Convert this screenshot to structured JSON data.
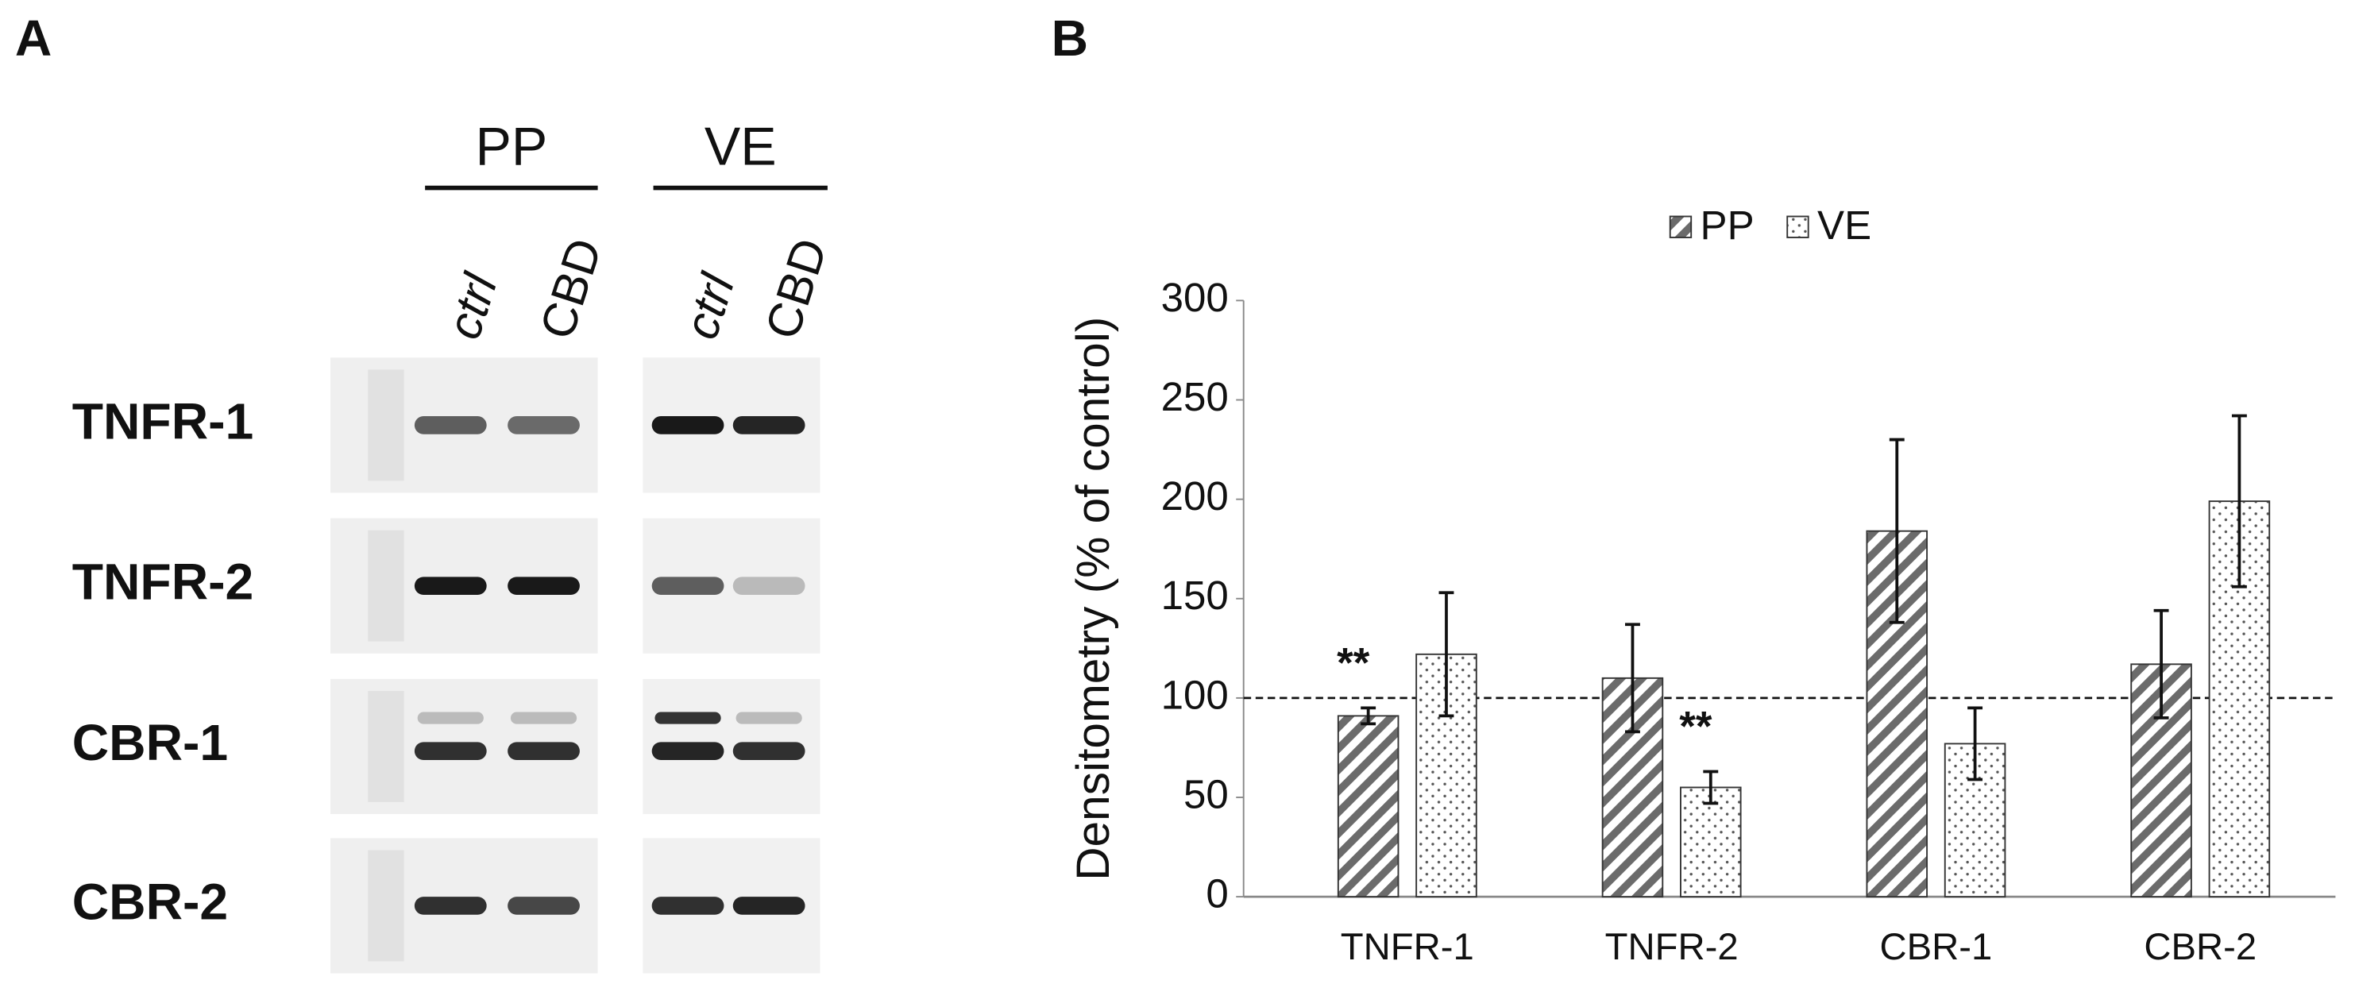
{
  "panel_a": {
    "label": "A",
    "groups": [
      "PP",
      "VE"
    ],
    "lanes": [
      "ctrl",
      "CBD",
      "ctrl",
      "CBD"
    ],
    "rows": [
      "TNFR-1",
      "TNFR-2",
      "CBR-1",
      "CBR-2"
    ]
  },
  "chart_data": {
    "type": "bar",
    "panel_label": "B",
    "y_label": "Densitometry (% of control)",
    "categories": [
      "TNFR-1",
      "TNFR-2",
      "CBR-1",
      "CBR-2"
    ],
    "series": [
      {
        "name": "PP",
        "fill": "hatch",
        "color": "#555555",
        "values": [
          91,
          110,
          184,
          117
        ],
        "errors": [
          4,
          27,
          46,
          27
        ]
      },
      {
        "name": "VE",
        "fill": "dots",
        "color": "#555555",
        "values": [
          122,
          55,
          77,
          199
        ],
        "errors": [
          31,
          8,
          18,
          43
        ]
      }
    ],
    "ylim": [
      0,
      300
    ],
    "yticks": [
      0,
      50,
      100,
      150,
      200,
      250,
      300
    ],
    "reference_line": 100,
    "legend": "top",
    "annotations": [
      {
        "text": "**",
        "category": "TNFR-1",
        "series": "PP"
      },
      {
        "text": "**",
        "category": "TNFR-2",
        "series": "VE"
      }
    ]
  }
}
